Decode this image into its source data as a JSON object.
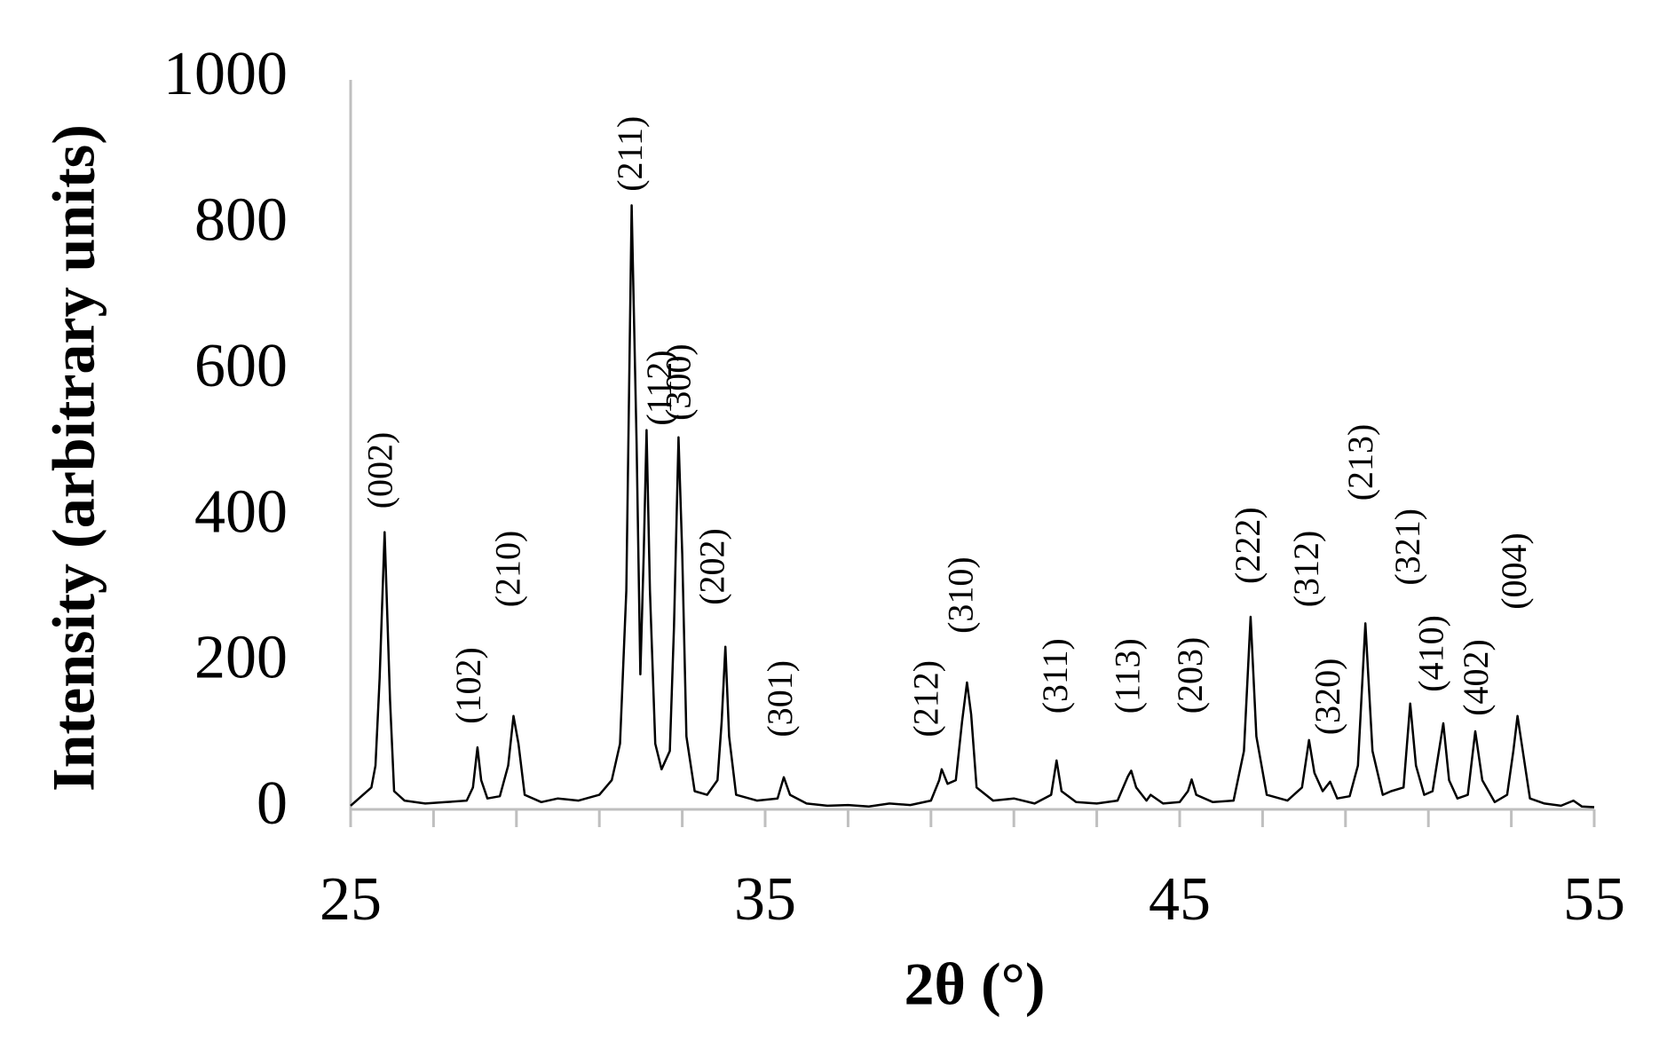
{
  "chart_data": {
    "type": "line",
    "x_label": "2θ (°)",
    "y_label": "Intensity (arbitrary units)",
    "color": "#000000",
    "axis_color": "#bfbfbf",
    "grid": false,
    "xlim": [
      25,
      55
    ],
    "ylim": [
      0,
      1000
    ],
    "xticks": [
      25,
      35,
      45,
      55
    ],
    "xminorticks": [
      27,
      29,
      31,
      33,
      37,
      39,
      41,
      43,
      47,
      49,
      51,
      53
    ],
    "yticks": [
      0,
      200,
      400,
      600,
      800,
      1000
    ],
    "x": [
      25,
      25.3,
      25.5,
      25.6,
      25.7,
      25.82,
      25.95,
      26.05,
      26.3,
      26.8,
      27.3,
      27.8,
      27.95,
      28.06,
      28.15,
      28.3,
      28.6,
      28.8,
      28.93,
      29.05,
      29.2,
      29.6,
      30.0,
      30.5,
      31.0,
      31.3,
      31.5,
      31.65,
      31.78,
      31.9,
      31.99,
      32.07,
      32.14,
      32.22,
      32.35,
      32.5,
      32.7,
      32.8,
      32.91,
      33.0,
      33.1,
      33.3,
      33.6,
      33.85,
      33.95,
      34.04,
      34.13,
      34.3,
      34.8,
      35.3,
      35.45,
      35.6,
      36.0,
      36.5,
      37.0,
      37.5,
      38.0,
      38.5,
      39.0,
      39.2,
      39.26,
      39.4,
      39.6,
      39.75,
      39.87,
      39.97,
      40.1,
      40.5,
      41.0,
      41.5,
      41.9,
      42.03,
      42.15,
      42.5,
      43.0,
      43.5,
      43.75,
      43.83,
      43.95,
      44.2,
      44.3,
      44.6,
      45.0,
      45.2,
      45.29,
      45.4,
      45.8,
      46.3,
      46.55,
      46.71,
      46.85,
      47.1,
      47.6,
      47.95,
      48.12,
      48.25,
      48.45,
      48.63,
      48.8,
      49.1,
      49.3,
      49.48,
      49.65,
      49.9,
      50.1,
      50.4,
      50.56,
      50.7,
      50.9,
      51.1,
      51.36,
      51.5,
      51.7,
      51.95,
      52.13,
      52.3,
      52.6,
      52.9,
      53.05,
      53.15,
      53.25,
      53.45,
      53.8,
      54.2,
      54.5,
      54.7,
      55
    ],
    "values": [
      5,
      20,
      30,
      60,
      180,
      380,
      150,
      25,
      12,
      8,
      10,
      12,
      30,
      85,
      40,
      15,
      18,
      60,
      128,
      90,
      20,
      10,
      15,
      12,
      20,
      40,
      90,
      300,
      828,
      500,
      185,
      350,
      520,
      300,
      90,
      55,
      80,
      250,
      510,
      350,
      100,
      25,
      20,
      40,
      120,
      223,
      100,
      20,
      12,
      15,
      44,
      20,
      8,
      5,
      6,
      4,
      8,
      6,
      12,
      40,
      55,
      35,
      40,
      120,
      174,
      130,
      30,
      12,
      15,
      8,
      20,
      67,
      25,
      10,
      8,
      12,
      45,
      53,
      30,
      12,
      20,
      8,
      10,
      25,
      41,
      20,
      10,
      12,
      80,
      264,
      100,
      20,
      12,
      30,
      95,
      50,
      25,
      38,
      15,
      18,
      60,
      255,
      80,
      20,
      25,
      30,
      145,
      60,
      20,
      25,
      118,
      40,
      15,
      20,
      107,
      40,
      10,
      20,
      80,
      128,
      90,
      15,
      8,
      5,
      12,
      4,
      3
    ],
    "annotations": [
      {
        "text": "(002)",
        "x": 25.8,
        "y": 412
      },
      {
        "text": "(102)",
        "x": 27.93,
        "y": 117
      },
      {
        "text": "(210)",
        "x": 28.88,
        "y": 277
      },
      {
        "text": "(211)",
        "x": 31.83,
        "y": 847
      },
      {
        "text": "(112)",
        "x": 32.53,
        "y": 526
      },
      {
        "text": "(300)",
        "x": 32.99,
        "y": 533
      },
      {
        "text": "(202)",
        "x": 33.81,
        "y": 280
      },
      {
        "text": "(301)",
        "x": 35.45,
        "y": 99
      },
      {
        "text": "(212)",
        "x": 38.97,
        "y": 99
      },
      {
        "text": "(310)",
        "x": 39.8,
        "y": 241
      },
      {
        "text": "(311)",
        "x": 42.08,
        "y": 131
      },
      {
        "text": "(113)",
        "x": 43.83,
        "y": 131
      },
      {
        "text": "(203)",
        "x": 45.34,
        "y": 131
      },
      {
        "text": "(222)",
        "x": 46.73,
        "y": 309
      },
      {
        "text": "(312)",
        "x": 48.14,
        "y": 277
      },
      {
        "text": "(320)",
        "x": 48.66,
        "y": 102
      },
      {
        "text": "(213)",
        "x": 49.45,
        "y": 423
      },
      {
        "text": "(321)",
        "x": 50.58,
        "y": 307
      },
      {
        "text": "(410)",
        "x": 51.15,
        "y": 161
      },
      {
        "text": "(402)",
        "x": 52.23,
        "y": 128
      },
      {
        "text": "(004)",
        "x": 53.15,
        "y": 274
      }
    ]
  }
}
